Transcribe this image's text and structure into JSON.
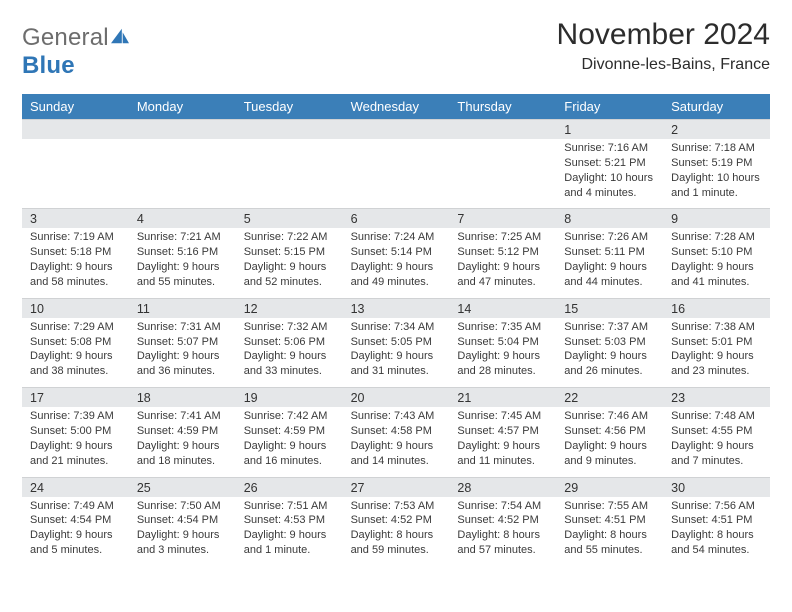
{
  "logo": {
    "general": "General",
    "blue": "Blue"
  },
  "header": {
    "title": "November 2024",
    "location": "Divonne-les-Bains, France"
  },
  "calendar": {
    "dow": [
      "Sunday",
      "Monday",
      "Tuesday",
      "Wednesday",
      "Thursday",
      "Friday",
      "Saturday"
    ],
    "colors": {
      "header_blue": "#3b7fb8",
      "row_grey": "#e5e7e9",
      "bg": "#ffffff",
      "text": "#2b2b2b"
    },
    "font": {
      "family": "Arial",
      "cell_size_pt": 8,
      "header_size_pt": 10,
      "title_size_pt": 22
    },
    "weeks": [
      [
        {
          "n": "",
          "sr": "",
          "ss": "",
          "dl": ""
        },
        {
          "n": "",
          "sr": "",
          "ss": "",
          "dl": ""
        },
        {
          "n": "",
          "sr": "",
          "ss": "",
          "dl": ""
        },
        {
          "n": "",
          "sr": "",
          "ss": "",
          "dl": ""
        },
        {
          "n": "",
          "sr": "",
          "ss": "",
          "dl": ""
        },
        {
          "n": "1",
          "sr": "Sunrise: 7:16 AM",
          "ss": "Sunset: 5:21 PM",
          "dl": "Daylight: 10 hours and 4 minutes."
        },
        {
          "n": "2",
          "sr": "Sunrise: 7:18 AM",
          "ss": "Sunset: 5:19 PM",
          "dl": "Daylight: 10 hours and 1 minute."
        }
      ],
      [
        {
          "n": "3",
          "sr": "Sunrise: 7:19 AM",
          "ss": "Sunset: 5:18 PM",
          "dl": "Daylight: 9 hours and 58 minutes."
        },
        {
          "n": "4",
          "sr": "Sunrise: 7:21 AM",
          "ss": "Sunset: 5:16 PM",
          "dl": "Daylight: 9 hours and 55 minutes."
        },
        {
          "n": "5",
          "sr": "Sunrise: 7:22 AM",
          "ss": "Sunset: 5:15 PM",
          "dl": "Daylight: 9 hours and 52 minutes."
        },
        {
          "n": "6",
          "sr": "Sunrise: 7:24 AM",
          "ss": "Sunset: 5:14 PM",
          "dl": "Daylight: 9 hours and 49 minutes."
        },
        {
          "n": "7",
          "sr": "Sunrise: 7:25 AM",
          "ss": "Sunset: 5:12 PM",
          "dl": "Daylight: 9 hours and 47 minutes."
        },
        {
          "n": "8",
          "sr": "Sunrise: 7:26 AM",
          "ss": "Sunset: 5:11 PM",
          "dl": "Daylight: 9 hours and 44 minutes."
        },
        {
          "n": "9",
          "sr": "Sunrise: 7:28 AM",
          "ss": "Sunset: 5:10 PM",
          "dl": "Daylight: 9 hours and 41 minutes."
        }
      ],
      [
        {
          "n": "10",
          "sr": "Sunrise: 7:29 AM",
          "ss": "Sunset: 5:08 PM",
          "dl": "Daylight: 9 hours and 38 minutes."
        },
        {
          "n": "11",
          "sr": "Sunrise: 7:31 AM",
          "ss": "Sunset: 5:07 PM",
          "dl": "Daylight: 9 hours and 36 minutes."
        },
        {
          "n": "12",
          "sr": "Sunrise: 7:32 AM",
          "ss": "Sunset: 5:06 PM",
          "dl": "Daylight: 9 hours and 33 minutes."
        },
        {
          "n": "13",
          "sr": "Sunrise: 7:34 AM",
          "ss": "Sunset: 5:05 PM",
          "dl": "Daylight: 9 hours and 31 minutes."
        },
        {
          "n": "14",
          "sr": "Sunrise: 7:35 AM",
          "ss": "Sunset: 5:04 PM",
          "dl": "Daylight: 9 hours and 28 minutes."
        },
        {
          "n": "15",
          "sr": "Sunrise: 7:37 AM",
          "ss": "Sunset: 5:03 PM",
          "dl": "Daylight: 9 hours and 26 minutes."
        },
        {
          "n": "16",
          "sr": "Sunrise: 7:38 AM",
          "ss": "Sunset: 5:01 PM",
          "dl": "Daylight: 9 hours and 23 minutes."
        }
      ],
      [
        {
          "n": "17",
          "sr": "Sunrise: 7:39 AM",
          "ss": "Sunset: 5:00 PM",
          "dl": "Daylight: 9 hours and 21 minutes."
        },
        {
          "n": "18",
          "sr": "Sunrise: 7:41 AM",
          "ss": "Sunset: 4:59 PM",
          "dl": "Daylight: 9 hours and 18 minutes."
        },
        {
          "n": "19",
          "sr": "Sunrise: 7:42 AM",
          "ss": "Sunset: 4:59 PM",
          "dl": "Daylight: 9 hours and 16 minutes."
        },
        {
          "n": "20",
          "sr": "Sunrise: 7:43 AM",
          "ss": "Sunset: 4:58 PM",
          "dl": "Daylight: 9 hours and 14 minutes."
        },
        {
          "n": "21",
          "sr": "Sunrise: 7:45 AM",
          "ss": "Sunset: 4:57 PM",
          "dl": "Daylight: 9 hours and 11 minutes."
        },
        {
          "n": "22",
          "sr": "Sunrise: 7:46 AM",
          "ss": "Sunset: 4:56 PM",
          "dl": "Daylight: 9 hours and 9 minutes."
        },
        {
          "n": "23",
          "sr": "Sunrise: 7:48 AM",
          "ss": "Sunset: 4:55 PM",
          "dl": "Daylight: 9 hours and 7 minutes."
        }
      ],
      [
        {
          "n": "24",
          "sr": "Sunrise: 7:49 AM",
          "ss": "Sunset: 4:54 PM",
          "dl": "Daylight: 9 hours and 5 minutes."
        },
        {
          "n": "25",
          "sr": "Sunrise: 7:50 AM",
          "ss": "Sunset: 4:54 PM",
          "dl": "Daylight: 9 hours and 3 minutes."
        },
        {
          "n": "26",
          "sr": "Sunrise: 7:51 AM",
          "ss": "Sunset: 4:53 PM",
          "dl": "Daylight: 9 hours and 1 minute."
        },
        {
          "n": "27",
          "sr": "Sunrise: 7:53 AM",
          "ss": "Sunset: 4:52 PM",
          "dl": "Daylight: 8 hours and 59 minutes."
        },
        {
          "n": "28",
          "sr": "Sunrise: 7:54 AM",
          "ss": "Sunset: 4:52 PM",
          "dl": "Daylight: 8 hours and 57 minutes."
        },
        {
          "n": "29",
          "sr": "Sunrise: 7:55 AM",
          "ss": "Sunset: 4:51 PM",
          "dl": "Daylight: 8 hours and 55 minutes."
        },
        {
          "n": "30",
          "sr": "Sunrise: 7:56 AM",
          "ss": "Sunset: 4:51 PM",
          "dl": "Daylight: 8 hours and 54 minutes."
        }
      ]
    ]
  }
}
